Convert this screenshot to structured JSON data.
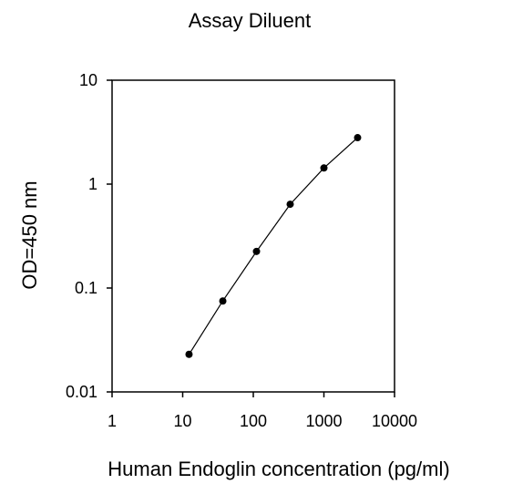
{
  "chart_data": {
    "type": "line",
    "title": "Assay Diluent",
    "xlabel": "Human Endoglin  concentration (pg/ml)",
    "ylabel": "OD=450 nm",
    "x_scale": "log",
    "y_scale": "log",
    "xlim": [
      1,
      10000
    ],
    "ylim": [
      0.01,
      10
    ],
    "x_ticks": [
      1,
      10,
      100,
      1000,
      10000
    ],
    "x_tick_labels": [
      "1",
      "10",
      "100",
      "1000",
      "10000"
    ],
    "y_ticks": [
      0.01,
      0.1,
      1,
      10
    ],
    "y_tick_labels": [
      "0.01",
      "0.1",
      "1",
      "10"
    ],
    "grid": false,
    "series": [
      {
        "x": [
          12.3,
          37,
          111,
          333,
          1000,
          3000
        ],
        "y": [
          0.023,
          0.075,
          0.225,
          0.64,
          1.43,
          2.8
        ]
      }
    ],
    "marker_color": "#000000",
    "line_color": "#000000"
  }
}
